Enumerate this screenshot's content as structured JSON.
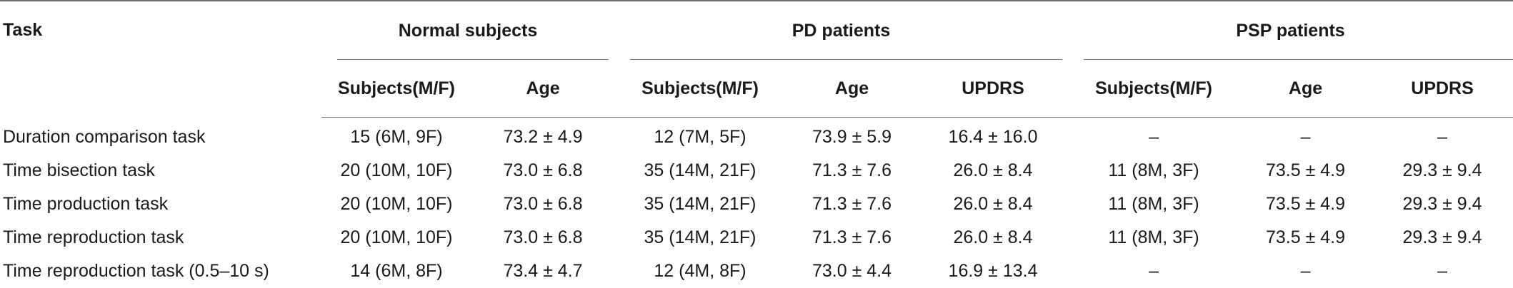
{
  "header": {
    "task": "Task",
    "groups": [
      "Normal subjects",
      "PD patients",
      "PSP patients"
    ],
    "subheaders": [
      "Subjects(M/F)",
      "Age",
      "Subjects(M/F)",
      "Age",
      "UPDRS",
      "Subjects(M/F)",
      "Age",
      "UPDRS"
    ]
  },
  "rows": [
    {
      "task": "Duration comparison task",
      "cells": [
        "15 (6M, 9F)",
        "73.2 ± 4.9",
        "12 (7M, 5F)",
        "73.9 ± 5.9",
        "16.4 ± 16.0",
        "–",
        "–",
        "–"
      ]
    },
    {
      "task": "Time bisection task",
      "cells": [
        "20 (10M, 10F)",
        "73.0 ± 6.8",
        "35 (14M, 21F)",
        "71.3 ± 7.6",
        "26.0 ± 8.4",
        "11 (8M, 3F)",
        "73.5 ± 4.9",
        "29.3 ± 9.4"
      ]
    },
    {
      "task": "Time production task",
      "cells": [
        "20 (10M, 10F)",
        "73.0 ± 6.8",
        "35 (14M, 21F)",
        "71.3 ± 7.6",
        "26.0 ± 8.4",
        "11 (8M, 3F)",
        "73.5 ± 4.9",
        "29.3 ± 9.4"
      ]
    },
    {
      "task": "Time reproduction task",
      "cells": [
        "20 (10M, 10F)",
        "73.0 ± 6.8",
        "35 (14M, 21F)",
        "71.3 ± 7.6",
        "26.0 ± 8.4",
        "11 (8M, 3F)",
        "73.5 ± 4.9",
        "29.3 ± 9.4"
      ]
    },
    {
      "task": "Time reproduction task (0.5–10 s)",
      "cells": [
        "14 (6M, 8F)",
        "73.4 ± 4.7",
        "12 (4M, 8F)",
        "73.0 ± 4.4",
        "16.9 ± 13.4",
        "–",
        "–",
        "–"
      ]
    }
  ]
}
